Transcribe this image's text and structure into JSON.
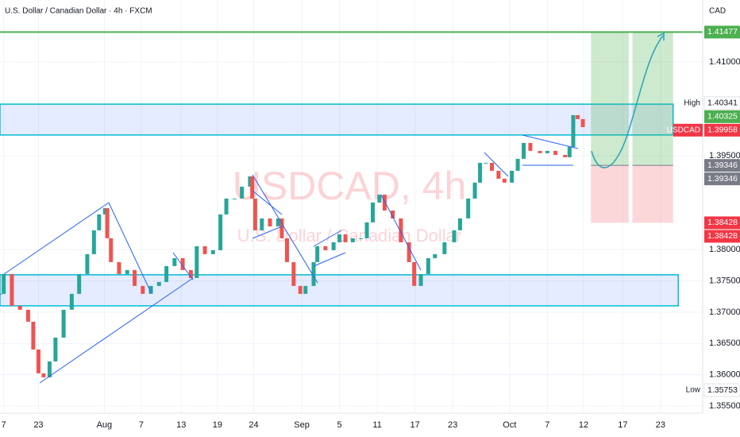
{
  "chart_data": {
    "type": "candlestick",
    "title": "U.S. Dollar / Canadian Dollar · 4h · FXCM",
    "watermark": "USDCAD, 4h",
    "watermark_subtitle": "U.S. Dollar / Canadian Dollar",
    "currency": "CAD",
    "x": [
      0,
      0.5,
      1.6,
      2.7,
      3.8,
      4.5,
      5.2,
      5.9,
      6.7,
      7.5,
      8.6,
      9.7,
      10.7,
      11.8,
      12.7,
      13.4,
      14.2,
      14.5,
      15,
      16.1,
      17.2,
      18.2,
      19.3,
      20.4,
      21.5,
      22.5,
      23.6,
      24.7,
      25.8,
      26.6,
      27.7,
      28.8,
      29.8,
      30.6,
      31.7,
      32.7,
      33.8,
      34.1,
      34.5,
      35.4,
      36.5,
      37.6,
      38.1,
      38.8,
      39.7,
      40.6,
      41.3,
      42.4,
      42.9,
      44,
      45.1,
      45.9,
      46.7,
      47.7,
      48.8,
      49.6,
      50.4,
      51.3,
      52,
      53.1,
      54.2,
      55.3,
      56,
      56.9,
      57.9,
      58.8,
      60.1,
      61.4,
      62.2,
      63.3,
      64.2,
      64.9,
      65.7,
      66.5,
      67.4,
      68.2,
      69.2,
      70,
      70.8,
      71.7,
      73,
      74,
      75.1,
      76.4,
      77,
      77.5,
      78.1,
      78.8
    ],
    "series": [
      {
        "name": "USDCAD",
        "up_color": "#26a69a",
        "down_color": "#ef5350",
        "values": [
          1.37292,
          1.37609,
          1.37101,
          1.37038,
          1.36847,
          1.36403,
          1.36022,
          1.35958,
          1.36212,
          1.36593,
          1.37038,
          1.37292,
          1.37609,
          1.37927,
          1.38308,
          1.38562,
          1.38663,
          1.38181,
          1.378,
          1.37609,
          1.37673,
          1.37419,
          1.37292,
          1.37419,
          1.37482,
          1.37736,
          1.37863,
          1.37673,
          1.37546,
          1.38054,
          1.37927,
          1.3799,
          1.38562,
          1.38816,
          1.38816,
          1.39006,
          1.39171,
          1.38816,
          1.38308,
          1.38498,
          1.38371,
          1.38498,
          1.38181,
          1.378,
          1.37419,
          1.37292,
          1.37419,
          1.378,
          1.38054,
          1.3799,
          1.38117,
          1.38244,
          1.38117,
          1.38181,
          1.38181,
          1.38435,
          1.38752,
          1.38879,
          1.38625,
          1.38498,
          1.38117,
          1.378,
          1.37419,
          1.37609,
          1.37863,
          1.37927,
          1.38117,
          1.38308,
          1.38498,
          1.38816,
          1.3907,
          1.39387,
          1.39387,
          1.3926,
          1.39133,
          1.3907,
          1.3926,
          1.39451,
          1.39705,
          1.39578,
          1.3954,
          1.39578,
          1.39514,
          1.39476,
          1.39641,
          1.40149,
          1.40086,
          1.39958
        ],
        "label_color": "#f23645"
      }
    ],
    "xlim": [
      0,
      95
    ],
    "ylim": [
      1.35385,
      1.4199
    ],
    "xticks": [
      {
        "value": 0.5,
        "label": "7"
      },
      {
        "value": 5.2,
        "label": "23"
      },
      {
        "value": 14.1,
        "label": "Aug"
      },
      {
        "value": 19.1,
        "label": "7"
      },
      {
        "value": 24.5,
        "label": "13"
      },
      {
        "value": 29.4,
        "label": "19"
      },
      {
        "value": 34.3,
        "label": "24"
      },
      {
        "value": 40.8,
        "label": "Sep"
      },
      {
        "value": 45.9,
        "label": "5"
      },
      {
        "value": 51,
        "label": "11"
      },
      {
        "value": 56.1,
        "label": "17"
      },
      {
        "value": 61.2,
        "label": "23"
      },
      {
        "value": 68.9,
        "label": "Oct"
      },
      {
        "value": 74,
        "label": "7"
      },
      {
        "value": 78.9,
        "label": "12"
      },
      {
        "value": 84.2,
        "label": "17"
      },
      {
        "value": 89.3,
        "label": "23"
      }
    ],
    "yticks": [
      {
        "value": 1.355,
        "label": "1.35500"
      },
      {
        "value": 1.36,
        "label": "1.36000"
      },
      {
        "value": 1.365,
        "label": "1.36500"
      },
      {
        "value": 1.37,
        "label": "1.37000"
      },
      {
        "value": 1.375,
        "label": "1.37500"
      },
      {
        "value": 1.38,
        "label": "1.38000"
      },
      {
        "value": 1.395,
        "label": "1.39500"
      },
      {
        "value": 1.41,
        "label": "1.41000"
      }
    ],
    "grid": true,
    "markers": [
      {
        "name": "High",
        "value": 1.40341
      },
      {
        "name": "Low",
        "value": 1.35753
      }
    ],
    "price_lines": [
      {
        "value": 1.41477,
        "color": "#4caf50"
      }
    ],
    "zones": [
      {
        "from": 1.39832,
        "to": 1.40325,
        "x": [
          0,
          91
        ],
        "label_color": "#4caf50"
      },
      {
        "from": 1.37101,
        "to": 1.37597,
        "x": [
          0,
          91.7
        ]
      }
    ],
    "positions": [
      {
        "x": [
          79.9,
          85
        ],
        "entry": 1.39346,
        "stop": 1.38428,
        "target": 1.41477
      },
      {
        "x": [
          85.5,
          91
        ],
        "entry": 1.39346,
        "stop": 1.38428,
        "target": 1.41477
      }
    ]
  }
}
